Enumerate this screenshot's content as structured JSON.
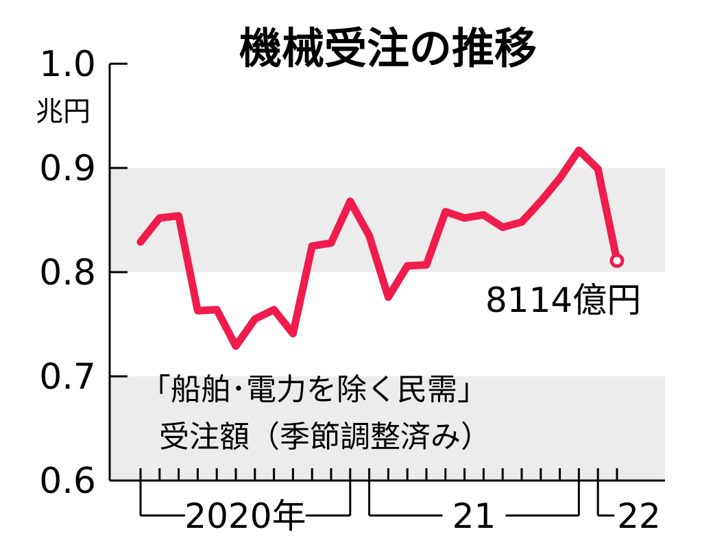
{
  "chart_data": {
    "type": "line",
    "title": "機械受注の推移",
    "ylabel": "兆円",
    "ylim": [
      0.6,
      1.0
    ],
    "yticks": [
      "1.0",
      "0.9",
      "0.8",
      "0.7",
      "0.6"
    ],
    "shaded_bands": [
      [
        0.8,
        0.9
      ],
      [
        0.6,
        0.7
      ]
    ],
    "grid": false,
    "x_groups": [
      {
        "label": "2020年",
        "start_month": 1,
        "end_month": 12
      },
      {
        "label": "21",
        "start_month": 13,
        "end_month": 24
      },
      {
        "label": "22",
        "start_month": 25,
        "end_month": 26
      }
    ],
    "series": [
      {
        "color": "#ef1c4c",
        "x": [
          "2020-01",
          "2020-02",
          "2020-03",
          "2020-04",
          "2020-05",
          "2020-06",
          "2020-07",
          "2020-08",
          "2020-09",
          "2020-10",
          "2020-11",
          "2020-12",
          "2021-01",
          "2021-02",
          "2021-03",
          "2021-04",
          "2021-05",
          "2021-06",
          "2021-07",
          "2021-08",
          "2021-09",
          "2021-10",
          "2021-11",
          "2021-12",
          "2022-01",
          "2022-02"
        ],
        "values": [
          0.829,
          0.852,
          0.854,
          0.763,
          0.764,
          0.729,
          0.755,
          0.764,
          0.741,
          0.825,
          0.828,
          0.868,
          0.835,
          0.776,
          0.806,
          0.807,
          0.858,
          0.852,
          0.855,
          0.843,
          0.848,
          0.868,
          0.89,
          0.917,
          0.899,
          0.811
        ]
      }
    ],
    "annotations": {
      "last_point_label": "8114億円",
      "note_line1": "「船舶･電力を除く民需」",
      "note_line2": "受注額（季節調整済み）"
    }
  }
}
